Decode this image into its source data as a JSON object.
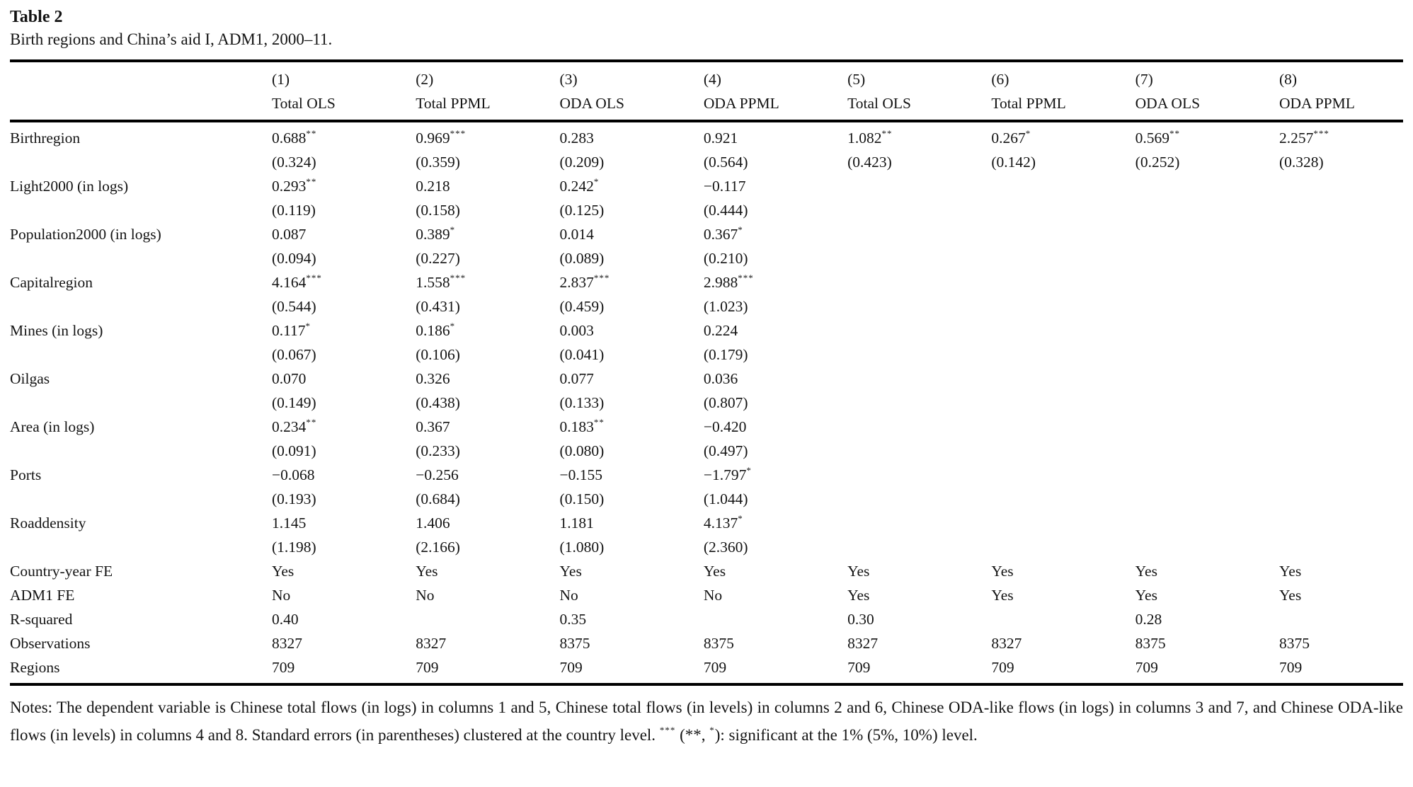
{
  "title": "Table 2",
  "caption": "Birth regions and China’s aid I, ADM1, 2000–11.",
  "table": {
    "col_numbers": [
      "(1)",
      "(2)",
      "(3)",
      "(4)",
      "(5)",
      "(6)",
      "(7)",
      "(8)"
    ],
    "col_models": [
      "Total OLS",
      "Total PPML",
      "ODA OLS",
      "ODA PPML",
      "Total OLS",
      "Total PPML",
      "ODA OLS",
      "ODA PPML"
    ],
    "rows": [
      {
        "label": "Birthregion",
        "coefs": [
          "0.688**",
          "0.969***",
          "0.283",
          "0.921",
          "1.082**",
          "0.267*",
          "0.569**",
          "2.257***"
        ],
        "ses": [
          "(0.324)",
          "(0.359)",
          "(0.209)",
          "(0.564)",
          "(0.423)",
          "(0.142)",
          "(0.252)",
          "(0.328)"
        ]
      },
      {
        "label": "Light2000 (in logs)",
        "coefs": [
          "0.293**",
          "0.218",
          "0.242*",
          "−0.117",
          "",
          "",
          "",
          ""
        ],
        "ses": [
          "(0.119)",
          "(0.158)",
          "(0.125)",
          "(0.444)",
          "",
          "",
          "",
          ""
        ]
      },
      {
        "label": "Population2000 (in logs)",
        "coefs": [
          "0.087",
          "0.389*",
          "0.014",
          "0.367*",
          "",
          "",
          "",
          ""
        ],
        "ses": [
          "(0.094)",
          "(0.227)",
          "(0.089)",
          "(0.210)",
          "",
          "",
          "",
          ""
        ]
      },
      {
        "label": "Capitalregion",
        "coefs": [
          "4.164***",
          "1.558***",
          "2.837***",
          "2.988***",
          "",
          "",
          "",
          ""
        ],
        "ses": [
          "(0.544)",
          "(0.431)",
          "(0.459)",
          "(1.023)",
          "",
          "",
          "",
          ""
        ]
      },
      {
        "label": "Mines (in logs)",
        "coefs": [
          "0.117*",
          "0.186*",
          "0.003",
          "0.224",
          "",
          "",
          "",
          ""
        ],
        "ses": [
          "(0.067)",
          "(0.106)",
          "(0.041)",
          "(0.179)",
          "",
          "",
          "",
          ""
        ]
      },
      {
        "label": "Oilgas",
        "coefs": [
          "0.070",
          "0.326",
          "0.077",
          "0.036",
          "",
          "",
          "",
          ""
        ],
        "ses": [
          "(0.149)",
          "(0.438)",
          "(0.133)",
          "(0.807)",
          "",
          "",
          "",
          ""
        ]
      },
      {
        "label": "Area (in logs)",
        "coefs": [
          "0.234**",
          "0.367",
          "0.183**",
          "−0.420",
          "",
          "",
          "",
          ""
        ],
        "ses": [
          "(0.091)",
          "(0.233)",
          "(0.080)",
          "(0.497)",
          "",
          "",
          "",
          ""
        ]
      },
      {
        "label": "Ports",
        "coefs": [
          "−0.068",
          "−0.256",
          "−0.155",
          "−1.797*",
          "",
          "",
          "",
          ""
        ],
        "ses": [
          "(0.193)",
          "(0.684)",
          "(0.150)",
          "(1.044)",
          "",
          "",
          "",
          ""
        ]
      },
      {
        "label": "Roaddensity",
        "coefs": [
          "1.145",
          "1.406",
          "1.181",
          "4.137*",
          "",
          "",
          "",
          ""
        ],
        "ses": [
          "(1.198)",
          "(2.166)",
          "(1.080)",
          "(2.360)",
          "",
          "",
          "",
          ""
        ]
      }
    ],
    "summary_rows": [
      {
        "label": "Country-year FE",
        "values": [
          "Yes",
          "Yes",
          "Yes",
          "Yes",
          "Yes",
          "Yes",
          "Yes",
          "Yes"
        ]
      },
      {
        "label": "ADM1 FE",
        "values": [
          "No",
          "No",
          "No",
          "No",
          "Yes",
          "Yes",
          "Yes",
          "Yes"
        ]
      },
      {
        "label": "R-squared",
        "values": [
          "0.40",
          "",
          "0.35",
          "",
          "0.30",
          "",
          "0.28",
          ""
        ]
      },
      {
        "label": "Observations",
        "values": [
          "8327",
          "8327",
          "8375",
          "8375",
          "8327",
          "8327",
          "8375",
          "8375"
        ]
      },
      {
        "label": "Regions",
        "values": [
          "709",
          "709",
          "709",
          "709",
          "709",
          "709",
          "709",
          "709"
        ]
      }
    ]
  },
  "notes_parts": [
    {
      "text": "Notes: The dependent variable is Chinese total flows (in logs) in columns 1 and 5, Chinese total flows (in levels) in columns 2 and 6, Chinese ODA-like flows (in logs) in columns 3 and 7, and Chinese ODA-like flows (in levels) in columns 4 and 8. Standard errors (in parentheses) clustered at the country level. "
    },
    {
      "sup": "***"
    },
    {
      "text": " (**, "
    },
    {
      "sup": "*"
    },
    {
      "text": "): significant at the 1% (5%, 10%) level."
    }
  ]
}
